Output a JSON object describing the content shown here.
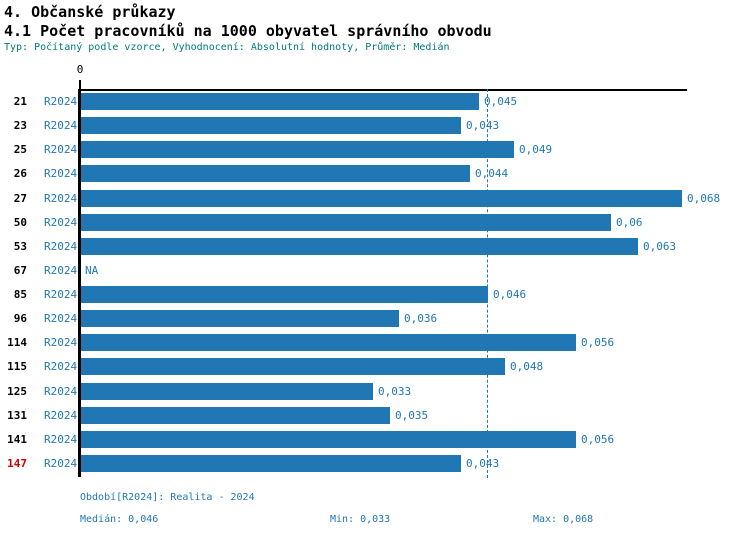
{
  "header": {
    "section_title": "4. Občanské průkazy"
  },
  "chart_data": {
    "type": "bar",
    "orientation": "horizontal",
    "title": "4.1 Počet pracovníků na 1000 obyvatel správního obvodu",
    "subtitle": "Typ: Počítaný podle vzorce, Vyhodnocení: Absolutní hodnoty, Průměr: Medián",
    "x_axis": {
      "zero_label": "0",
      "min": 0,
      "max": 0.0688,
      "gridlines": false
    },
    "series_label": "R2024",
    "categories": [
      "21",
      "23",
      "25",
      "26",
      "27",
      "50",
      "53",
      "67",
      "85",
      "96",
      "114",
      "115",
      "125",
      "131",
      "141",
      "147"
    ],
    "values": [
      0.045,
      0.043,
      0.049,
      0.044,
      0.068,
      0.06,
      0.063,
      null,
      0.046,
      0.036,
      0.056,
      0.048,
      0.033,
      0.035,
      0.056,
      0.043
    ],
    "value_labels": [
      "0,045",
      "0,043",
      "0,049",
      "0,044",
      "0,068",
      "0,06",
      "0,063",
      "NA",
      "0,046",
      "0,036",
      "0,056",
      "0,048",
      "0,033",
      "0,035",
      "0,056",
      "0,043"
    ],
    "na_label": "NA",
    "highlight": {
      "category": "147"
    },
    "median": {
      "value": 0.046,
      "line_style": "dashed"
    },
    "stats": {
      "median": "0,046",
      "min": "0,033",
      "max": "0,068"
    },
    "footer": {
      "period": "Období[R2024]: Realita - 2024",
      "median": "Medián: 0,046",
      "min": "Min: 0,033",
      "max": "Max: 0,068"
    },
    "colors": {
      "bar": "#2176b4",
      "text_blue": "#1f77b4",
      "subtitle_teal": "#007a7a",
      "highlight_red": "#d40000",
      "axis_black": "#000000"
    }
  }
}
